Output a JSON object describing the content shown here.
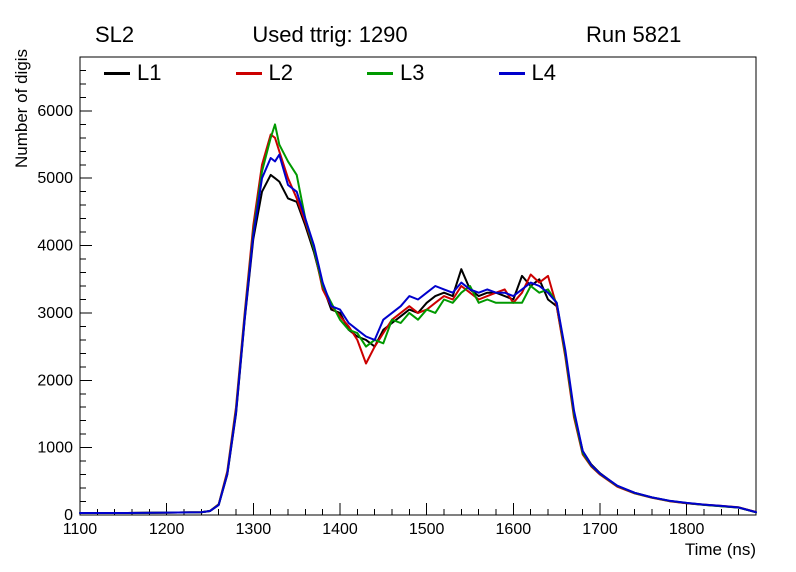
{
  "chart_data": {
    "type": "line",
    "title_left": "SL2",
    "title_center": "Used ttrig: 1290",
    "title_right": "Run 5821",
    "xlabel": "Time (ns)",
    "ylabel": "Number of digis",
    "xlim": [
      1100,
      1880
    ],
    "ylim": [
      0,
      6800
    ],
    "x_major_ticks": [
      1100,
      1200,
      1300,
      1400,
      1500,
      1600,
      1700,
      1800
    ],
    "x_minor_step": 20,
    "y_major_ticks": [
      0,
      1000,
      2000,
      3000,
      4000,
      5000,
      6000
    ],
    "y_minor_step": 200,
    "grid": false,
    "legend_position": "top-inside",
    "x": [
      1100,
      1150,
      1200,
      1240,
      1250,
      1260,
      1270,
      1280,
      1290,
      1300,
      1310,
      1320,
      1325,
      1330,
      1340,
      1350,
      1360,
      1370,
      1380,
      1390,
      1400,
      1410,
      1420,
      1430,
      1440,
      1450,
      1460,
      1470,
      1480,
      1490,
      1500,
      1510,
      1520,
      1530,
      1540,
      1550,
      1560,
      1570,
      1580,
      1590,
      1600,
      1610,
      1620,
      1630,
      1640,
      1650,
      1660,
      1670,
      1680,
      1690,
      1700,
      1720,
      1740,
      1760,
      1780,
      1800,
      1820,
      1840,
      1860,
      1880
    ],
    "series": [
      {
        "name": "L1",
        "color": "#000000",
        "values": [
          30,
          30,
          35,
          40,
          60,
          150,
          600,
          1500,
          2900,
          4100,
          4800,
          5050,
          5000,
          4950,
          4700,
          4650,
          4300,
          3900,
          3400,
          3050,
          3000,
          2750,
          2650,
          2600,
          2500,
          2750,
          2850,
          2950,
          3050,
          3000,
          3150,
          3250,
          3300,
          3250,
          3650,
          3350,
          3250,
          3300,
          3300,
          3250,
          3200,
          3550,
          3400,
          3500,
          3200,
          3100,
          2400,
          1500,
          950,
          750,
          620,
          430,
          330,
          260,
          210,
          175,
          150,
          130,
          110,
          40
        ]
      },
      {
        "name": "L2",
        "color": "#cc0000",
        "values": [
          30,
          30,
          35,
          40,
          60,
          160,
          650,
          1600,
          3000,
          4300,
          5200,
          5650,
          5600,
          5400,
          5000,
          4700,
          4350,
          3950,
          3350,
          3100,
          2950,
          2800,
          2600,
          2250,
          2500,
          2700,
          2900,
          3000,
          3100,
          3000,
          3050,
          3150,
          3250,
          3200,
          3400,
          3300,
          3200,
          3250,
          3300,
          3350,
          3150,
          3300,
          3570,
          3450,
          3550,
          3100,
          2350,
          1450,
          900,
          720,
          600,
          420,
          320,
          255,
          205,
          175,
          155,
          135,
          115,
          45
        ]
      },
      {
        "name": "L3",
        "color": "#009900",
        "values": [
          30,
          30,
          35,
          40,
          60,
          155,
          620,
          1550,
          2950,
          4200,
          5100,
          5600,
          5800,
          5500,
          5250,
          5050,
          4400,
          3950,
          3400,
          3150,
          2900,
          2750,
          2700,
          2500,
          2600,
          2550,
          2900,
          2850,
          3000,
          2900,
          3050,
          3000,
          3200,
          3150,
          3300,
          3400,
          3150,
          3200,
          3150,
          3150,
          3150,
          3150,
          3400,
          3300,
          3350,
          3150,
          2400,
          1500,
          920,
          730,
          610,
          430,
          325,
          260,
          210,
          178,
          152,
          132,
          112,
          42
        ]
      },
      {
        "name": "L4",
        "color": "#0000cc",
        "values": [
          30,
          30,
          35,
          40,
          60,
          150,
          610,
          1520,
          2920,
          4150,
          5000,
          5300,
          5250,
          5350,
          4900,
          4800,
          4400,
          4000,
          3450,
          3100,
          3050,
          2850,
          2750,
          2650,
          2600,
          2900,
          3000,
          3100,
          3250,
          3200,
          3300,
          3400,
          3350,
          3300,
          3450,
          3350,
          3300,
          3350,
          3300,
          3300,
          3250,
          3350,
          3450,
          3400,
          3300,
          3150,
          2450,
          1550,
          950,
          740,
          615,
          435,
          330,
          262,
          212,
          180,
          155,
          135,
          112,
          43
        ]
      }
    ]
  }
}
